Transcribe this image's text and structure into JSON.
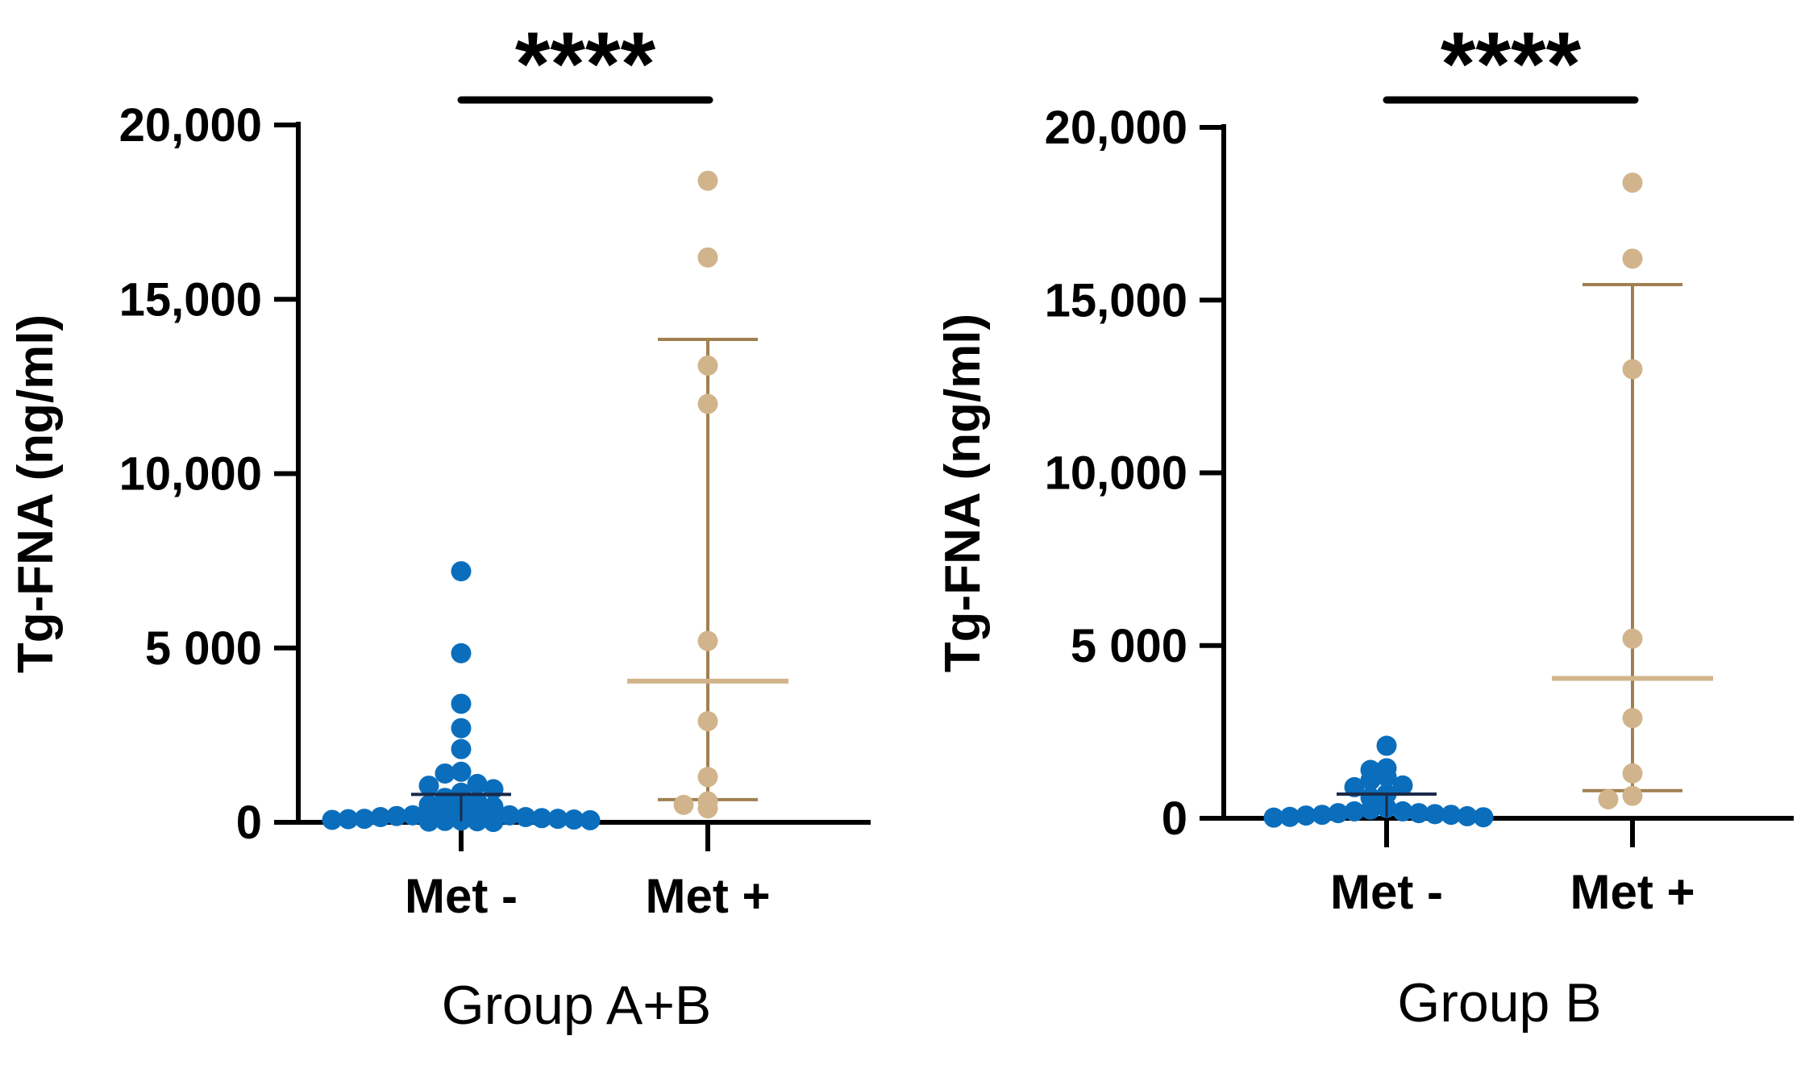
{
  "colors": {
    "met_neg": "#0a6ebd",
    "met_pos": "#d2b48c",
    "met_pos_err": "#a08050",
    "met_neg_bar": "#1a2a4a",
    "axis": "#000000"
  },
  "chart_data": [
    {
      "type": "scatter",
      "group_title": "Group A+B",
      "ylabel": "Tg-FNA (ng/ml)",
      "ylim": [
        0,
        20000
      ],
      "yticks": [
        0,
        5000,
        10000,
        15000,
        20000
      ],
      "ytick_labels": [
        "0",
        "5 000",
        "10,000",
        "15,000",
        "20,000"
      ],
      "categories": [
        "Met -",
        "Met +"
      ],
      "significance": "****",
      "series": [
        {
          "name": "Met -",
          "values": [
            7200,
            4850,
            3400,
            2700,
            2100,
            1450,
            1400,
            1100,
            1050,
            950,
            850,
            700,
            600,
            500,
            450,
            400,
            350,
            300,
            250,
            250,
            200,
            200,
            180,
            150,
            150,
            120,
            100,
            100,
            90,
            80,
            70,
            60,
            50,
            40,
            30,
            20,
            10
          ],
          "center": 800,
          "lower": 30,
          "upper": 800
        },
        {
          "name": "Met +",
          "values": [
            18400,
            16200,
            13100,
            12000,
            5200,
            2900,
            1300,
            600,
            500,
            400
          ],
          "center": 4050,
          "lower": 650,
          "upper": 13850
        }
      ]
    },
    {
      "type": "scatter",
      "group_title": "Group B",
      "ylabel": "Tg-FNA (ng/ml)",
      "ylim": [
        0,
        20000
      ],
      "yticks": [
        0,
        5000,
        10000,
        15000,
        20000
      ],
      "ytick_labels": [
        "0",
        "5 000",
        "10,000",
        "15,000",
        "20,000"
      ],
      "categories": [
        "Met -",
        "Met +"
      ],
      "significance": "****",
      "series": [
        {
          "name": "Met -",
          "values": [
            2100,
            1450,
            1400,
            1200,
            1100,
            950,
            900,
            700,
            600,
            300,
            250,
            200,
            200,
            150,
            150,
            120,
            100,
            100,
            80,
            60,
            40,
            30,
            20
          ],
          "center": 700,
          "lower": 30,
          "upper": 700
        },
        {
          "name": "Met +",
          "values": [
            18400,
            16200,
            13000,
            5200,
            2900,
            1300,
            650,
            550
          ],
          "center": 4050,
          "lower": 800,
          "upper": 15450
        }
      ]
    }
  ]
}
